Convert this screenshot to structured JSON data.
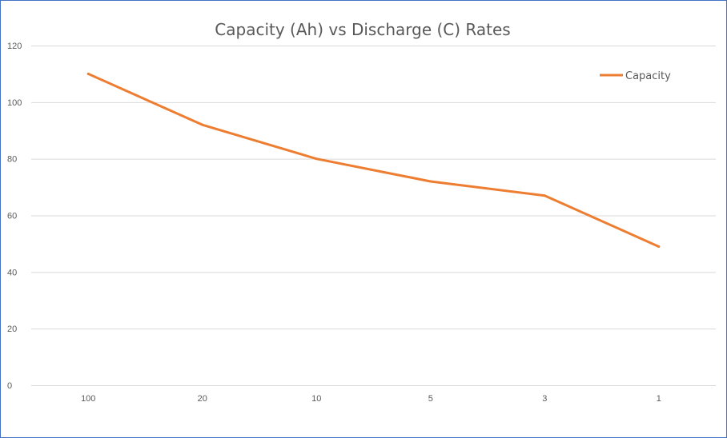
{
  "chart_data": {
    "type": "line",
    "title": "Capacity (Ah) vs  Discharge (C) Rates",
    "xlabel": "",
    "ylabel": "",
    "categories": [
      "100",
      "20",
      "10",
      "5",
      "3",
      "1"
    ],
    "series": [
      {
        "name": "Capacity",
        "color": "#ED7D31",
        "values": [
          110,
          92,
          80,
          72,
          67,
          49
        ]
      }
    ],
    "ylim": [
      0,
      120
    ],
    "yticks": [
      0,
      20,
      40,
      60,
      80,
      100,
      120
    ],
    "grid": true,
    "legend": "top-right"
  },
  "colors": {
    "border": "#4472C4",
    "grid": "#D9D9D9",
    "text": "#595959"
  }
}
